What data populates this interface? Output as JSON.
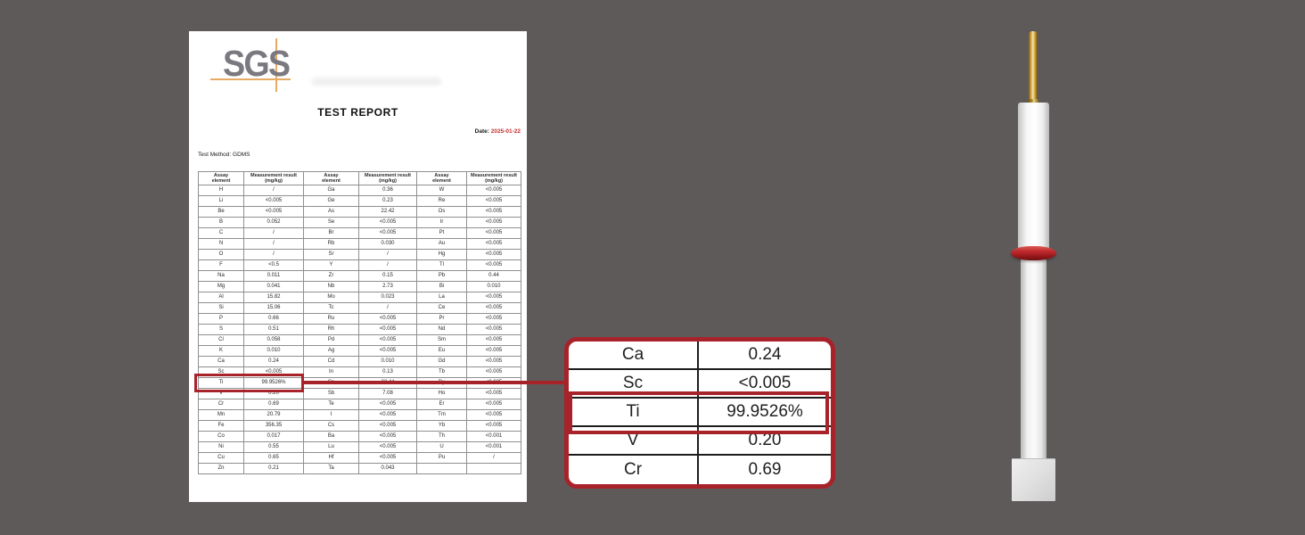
{
  "colors": {
    "background": "#5e5a5a",
    "accent_red": "#a8222a",
    "date_red": "#c5302c",
    "logo_gray": "#7b7980",
    "logo_orange": "#e6aa63",
    "product_pin_gold": "#c9992f",
    "product_body_white": "#f7f7f7",
    "product_oring_red": "#c12b2f",
    "product_base_gray": "#e0e0e0"
  },
  "report": {
    "logo_text": "SGS",
    "title": "TEST REPORT",
    "date_label": "Date:",
    "date_value": "2025-01-22",
    "test_method": "Test Method: GDMS",
    "highlighted_element": "Ti",
    "table": {
      "header_element": [
        "Assay",
        "element"
      ],
      "header_result": [
        "Measurement result",
        "(mg/kg)"
      ],
      "header_pairs": 3,
      "rows": [
        [
          "H",
          "/",
          "Ga",
          "0.36",
          "W",
          "<0.005"
        ],
        [
          "Li",
          "<0.005",
          "Ge",
          "0.23",
          "Re",
          "<0.005"
        ],
        [
          "Be",
          "<0.005",
          "As",
          "22.42",
          "Os",
          "<0.005"
        ],
        [
          "B",
          "0.052",
          "Se",
          "<0.005",
          "Ir",
          "<0.005"
        ],
        [
          "C",
          "/",
          "Br",
          "<0.005",
          "Pt",
          "<0.005"
        ],
        [
          "N",
          "/",
          "Rb",
          "0.030",
          "Au",
          "<0.005"
        ],
        [
          "O",
          "/",
          "Sr",
          "/",
          "Hg",
          "<0.005"
        ],
        [
          "F",
          "<0.5",
          "Y",
          "/",
          "Tl",
          "<0.005"
        ],
        [
          "Na",
          "0.011",
          "Zr",
          "0.15",
          "Pb",
          "0.44"
        ],
        [
          "Mg",
          "0.041",
          "Nb",
          "2.73",
          "Bi",
          "0.010"
        ],
        [
          "Al",
          "15.82",
          "Mo",
          "0.023",
          "La",
          "<0.005"
        ],
        [
          "Si",
          "15.06",
          "Tc",
          "/",
          "Ce",
          "<0.005"
        ],
        [
          "P",
          "0.66",
          "Ru",
          "<0.005",
          "Pr",
          "<0.005"
        ],
        [
          "S",
          "0.51",
          "Rh",
          "<0.005",
          "Nd",
          "<0.005"
        ],
        [
          "Cl",
          "0.058",
          "Pd",
          "<0.005",
          "Sm",
          "<0.005"
        ],
        [
          "K",
          "0.010",
          "Ag",
          "<0.005",
          "Eu",
          "<0.005"
        ],
        [
          "Ca",
          "0.24",
          "Cd",
          "0.010",
          "Gd",
          "<0.005"
        ],
        [
          "Sc",
          "<0.005",
          "In",
          "0.13",
          "Tb",
          "<0.005"
        ],
        [
          "Ti",
          "99.9526%",
          "Sn",
          "22.44",
          "Dy",
          "<0.005"
        ],
        [
          "V",
          "0.20",
          "Sb",
          "7.08",
          "Ho",
          "<0.005"
        ],
        [
          "Cr",
          "0.69",
          "Te",
          "<0.005",
          "Er",
          "<0.005"
        ],
        [
          "Mn",
          "20.79",
          "I",
          "<0.005",
          "Tm",
          "<0.005"
        ],
        [
          "Fe",
          "356.35",
          "Cs",
          "<0.005",
          "Yb",
          "<0.005"
        ],
        [
          "Co",
          "0.017",
          "Ba",
          "<0.005",
          "Th",
          "<0.001"
        ],
        [
          "Ni",
          "0.55",
          "Lu",
          "<0.005",
          "U",
          "<0.001"
        ],
        [
          "Cu",
          "0.65",
          "Hf",
          "<0.005",
          "Pu",
          "/"
        ],
        [
          "Zn",
          "0.21",
          "Ta",
          "0.043",
          "",
          ""
        ]
      ]
    }
  },
  "callout": {
    "highlighted_element": "Ti",
    "rows": [
      {
        "element": "Ca",
        "value": "0.24"
      },
      {
        "element": "Sc",
        "value": "<0.005"
      },
      {
        "element": "Ti",
        "value": "99.9526%"
      },
      {
        "element": "V",
        "value": "0.20"
      },
      {
        "element": "Cr",
        "value": "0.69"
      }
    ]
  }
}
